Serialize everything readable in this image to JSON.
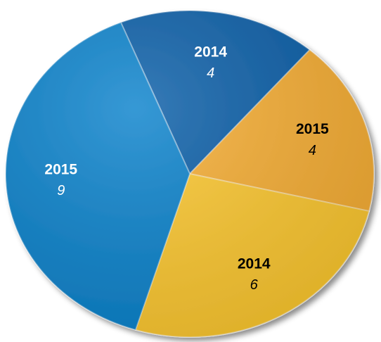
{
  "chart_data": {
    "type": "pie",
    "categories": [
      "2014",
      "2015",
      "2014",
      "2015"
    ],
    "values": [
      4,
      4,
      6,
      9
    ],
    "colors": [
      "#0a5ea8",
      "#f7ae33",
      "#fdc82f",
      "#0a82cc"
    ]
  }
}
